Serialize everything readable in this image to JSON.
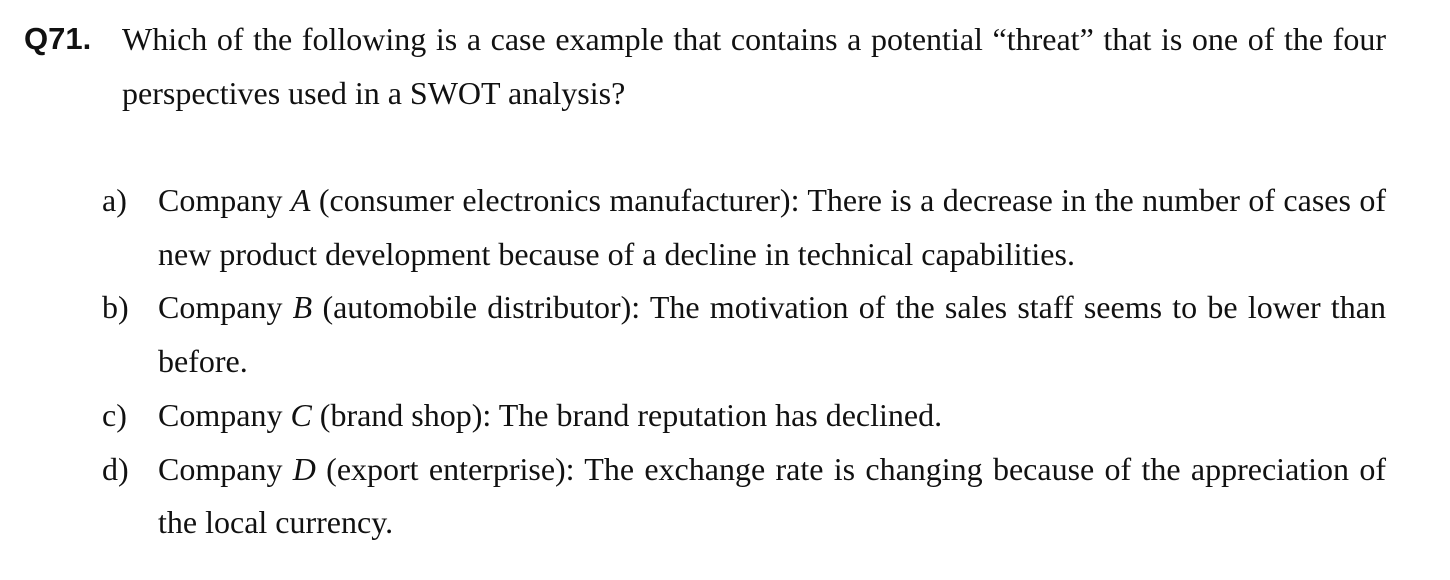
{
  "question": {
    "number": "Q71.",
    "text": "Which of the following is a case example that contains a potential “threat” that is one of the four perspectives used in a SWOT analysis?"
  },
  "options": [
    {
      "letter": "a)",
      "prefix": "Company ",
      "company": "A",
      "text": " (consumer electronics manufacturer): There is a decrease in the number of cases of new product development because of a decline in technical capabilities."
    },
    {
      "letter": "b)",
      "prefix": "Company ",
      "company": "B",
      "text": " (automobile distributor): The motivation of the sales staff seems to be lower than before."
    },
    {
      "letter": "c)",
      "prefix": "Company ",
      "company": "C",
      "text": " (brand shop): The brand reputation has declined."
    },
    {
      "letter": "d)",
      "prefix": "Company ",
      "company": "D",
      "text": " (export enterprise): The exchange rate is changing because of the appreciation of the local currency."
    }
  ]
}
